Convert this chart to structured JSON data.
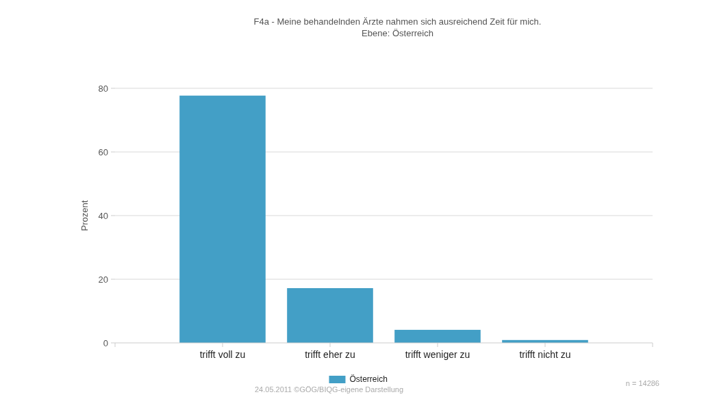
{
  "chart_data": {
    "type": "bar",
    "title": "F4a - Meine behandelnden Ärzte nahmen sich ausreichend Zeit für mich.",
    "subtitle": "Ebene: Österreich",
    "ylabel": "Prozent",
    "categories": [
      "trifft voll zu",
      "trifft eher zu",
      "trifft weniger zu",
      "trifft nicht zu"
    ],
    "series": [
      {
        "name": "Österreich",
        "color": "#439fc6",
        "values": [
          77.7,
          17.2,
          4.1,
          0.9
        ]
      }
    ],
    "ylim": [
      0,
      80
    ],
    "yticks": [
      0,
      20,
      40,
      60,
      80
    ],
    "grid": "y",
    "legend": "bottom",
    "annotations": [
      "24.05.2011 ©GÖG/BIQG-eigene Darstellung",
      "n = 14286"
    ]
  }
}
